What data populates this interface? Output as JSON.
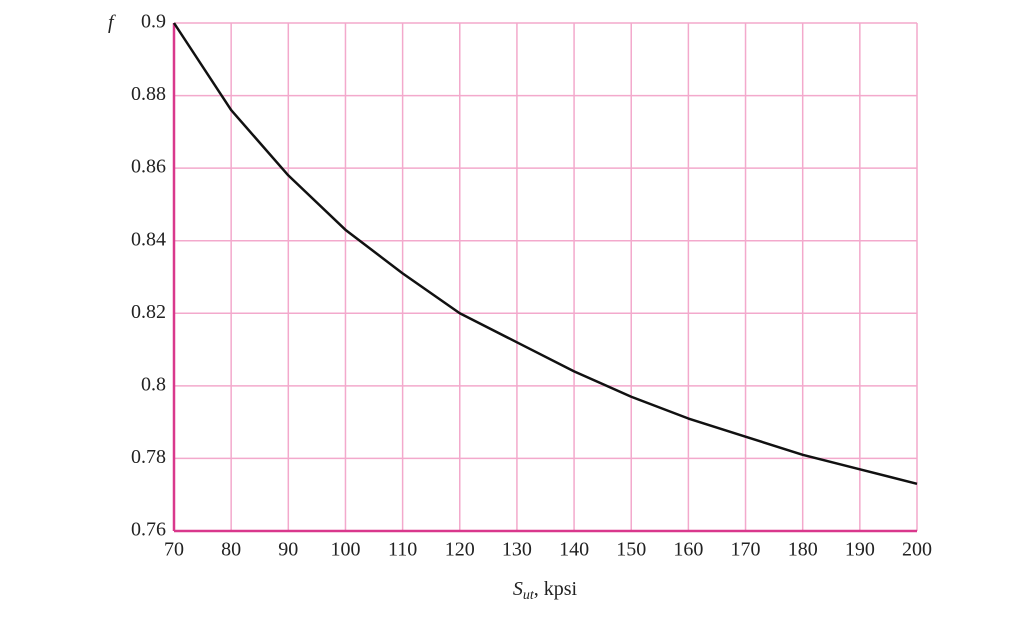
{
  "chart_data": {
    "type": "line",
    "y_label": "f",
    "x_label": {
      "symbol": "S",
      "subscript": "ut",
      "unit": ", kpsi"
    },
    "x": [
      70,
      80,
      90,
      100,
      110,
      120,
      130,
      140,
      150,
      160,
      170,
      180,
      190,
      200
    ],
    "series": [
      {
        "name": "f",
        "color": "#111111",
        "values": [
          0.9,
          0.876,
          0.858,
          0.843,
          0.831,
          0.82,
          0.812,
          0.804,
          0.797,
          0.791,
          0.786,
          0.781,
          0.777,
          0.773
        ]
      }
    ],
    "xlim": [
      70,
      200
    ],
    "xticks": [
      70,
      80,
      90,
      100,
      110,
      120,
      130,
      140,
      150,
      160,
      170,
      180,
      190,
      200
    ],
    "ylim": [
      0.76,
      0.9
    ],
    "yticks": [
      0.76,
      0.78,
      0.8,
      0.82,
      0.84,
      0.86,
      0.88,
      0.9
    ],
    "grid": true,
    "grid_color": "#f3a9cc",
    "axis_color": "#d9388c"
  }
}
